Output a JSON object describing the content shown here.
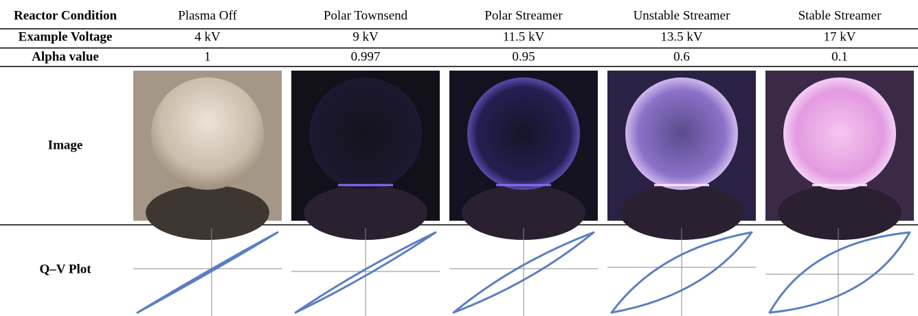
{
  "table": {
    "header": [
      "Reactor Condition",
      "Plasma Off",
      "Polar Townsend",
      "Polar Streamer",
      "Unstable Streamer",
      "Stable Streamer"
    ],
    "rows": [
      {
        "label": "Example Voltage",
        "cells": [
          "4 kV",
          "9 kV",
          "11.5 kV",
          "13.5 kV",
          "17 kV"
        ]
      },
      {
        "label": "Alpha value",
        "cells": [
          1,
          0.997,
          0.95,
          0.6,
          0.1
        ]
      },
      {
        "label": "Image"
      },
      {
        "label": "Q–V Plot"
      }
    ]
  }
}
